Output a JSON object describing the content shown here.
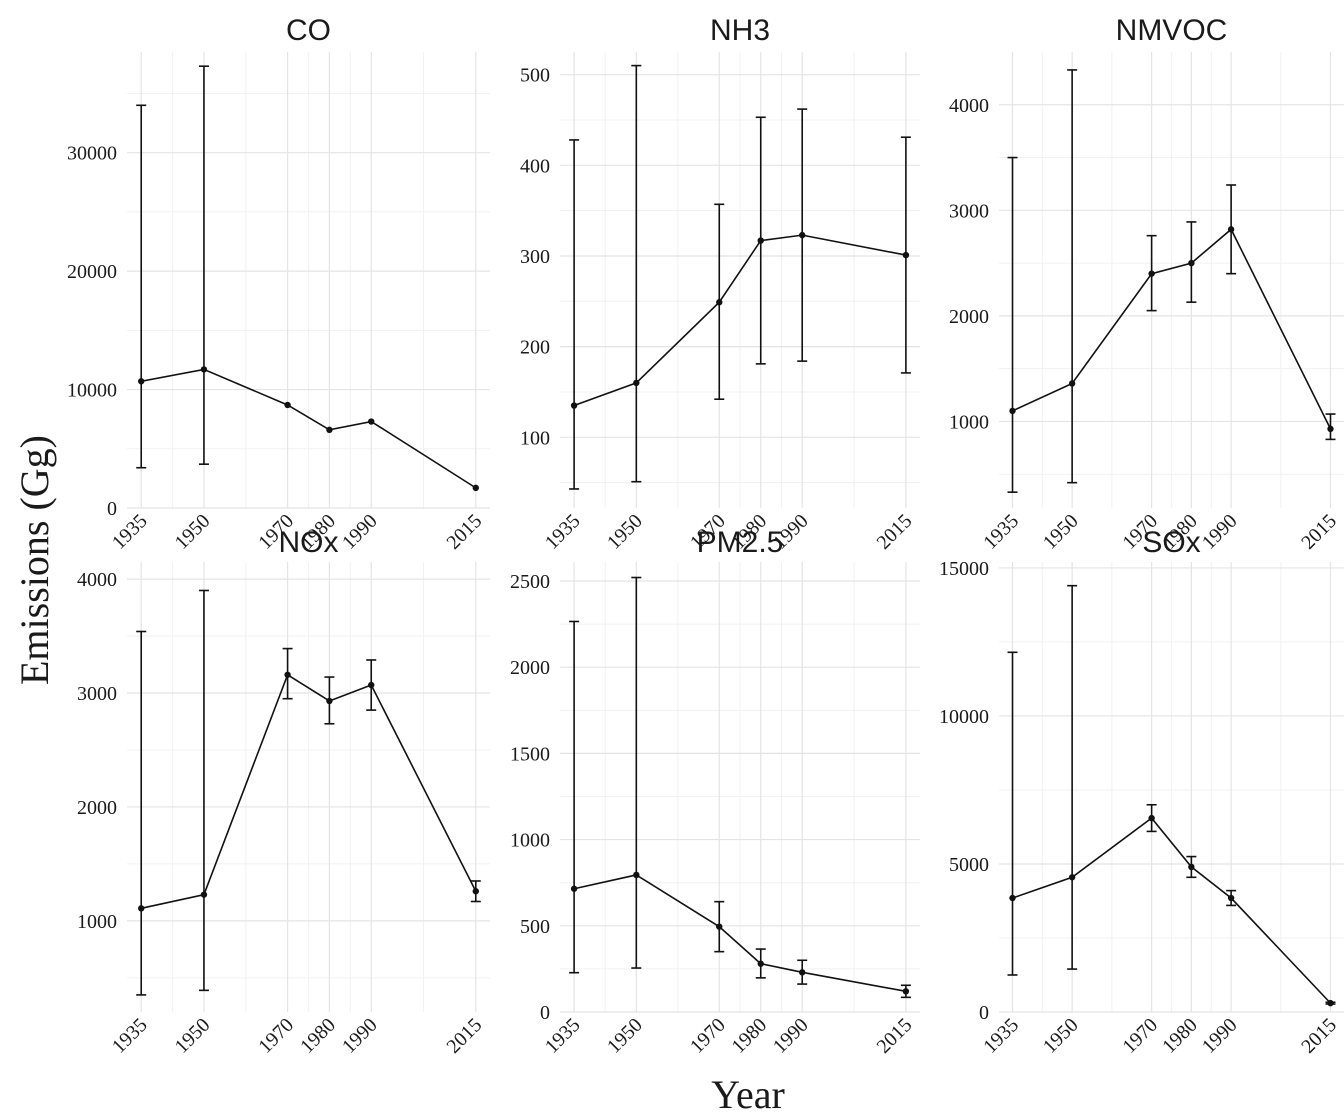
{
  "figure": {
    "xlabel": "Year",
    "ylabel": "Emissions (Gg)"
  },
  "chart_data": [
    {
      "type": "line",
      "title": "CO",
      "x": [
        1935,
        1950,
        1970,
        1980,
        1990,
        2015
      ],
      "y": [
        10700,
        11700,
        8700,
        6600,
        7300,
        1700
      ],
      "err_low": [
        3400,
        3700,
        8700,
        6600,
        7300,
        1700
      ],
      "err_high": [
        34000,
        37300,
        8700,
        6600,
        7300,
        1700
      ],
      "xticks": [
        1935,
        1950,
        1970,
        1980,
        1990,
        2015
      ],
      "yticks": [
        0,
        10000,
        20000,
        30000
      ],
      "ylim": [
        0,
        38500
      ]
    },
    {
      "type": "line",
      "title": "NH3",
      "x": [
        1935,
        1950,
        1970,
        1980,
        1990,
        2015
      ],
      "y": [
        135,
        160,
        249,
        317,
        323,
        301
      ],
      "err_low": [
        43,
        51,
        142,
        181,
        184,
        171
      ],
      "err_high": [
        428,
        510,
        357,
        453,
        462,
        431
      ],
      "xticks": [
        1935,
        1950,
        1970,
        1980,
        1990,
        2015
      ],
      "yticks": [
        100,
        200,
        300,
        400,
        500
      ],
      "ylim": [
        22,
        525
      ]
    },
    {
      "type": "line",
      "title": "NMVOC",
      "x": [
        1935,
        1950,
        1970,
        1980,
        1990,
        2015
      ],
      "y": [
        1100,
        1360,
        2400,
        2500,
        2820,
        930
      ],
      "err_low": [
        330,
        420,
        2050,
        2130,
        2400,
        830
      ],
      "err_high": [
        3500,
        4330,
        2760,
        2890,
        3240,
        1070
      ],
      "xticks": [
        1935,
        1950,
        1970,
        1980,
        1990,
        2015
      ],
      "yticks": [
        1000,
        2000,
        3000,
        4000
      ],
      "ylim": [
        180,
        4500
      ]
    },
    {
      "type": "line",
      "title": "NOx",
      "x": [
        1935,
        1950,
        1970,
        1980,
        1990,
        2015
      ],
      "y": [
        1110,
        1230,
        3160,
        2930,
        3070,
        1260
      ],
      "err_low": [
        350,
        390,
        2950,
        2730,
        2850,
        1170
      ],
      "err_high": [
        3540,
        3900,
        3390,
        3140,
        3290,
        1350
      ],
      "xticks": [
        1935,
        1950,
        1970,
        1980,
        1990,
        2015
      ],
      "yticks": [
        1000,
        2000,
        3000,
        4000
      ],
      "ylim": [
        200,
        4150
      ]
    },
    {
      "type": "line",
      "title": "PM2.5",
      "x": [
        1935,
        1950,
        1970,
        1980,
        1990,
        2015
      ],
      "y": [
        715,
        795,
        495,
        280,
        230,
        120
      ],
      "err_low": [
        228,
        255,
        350,
        198,
        162,
        85
      ],
      "err_high": [
        2265,
        2520,
        640,
        365,
        300,
        155
      ],
      "xticks": [
        1935,
        1950,
        1970,
        1980,
        1990,
        2015
      ],
      "yticks": [
        0,
        500,
        1000,
        1500,
        2000,
        2500
      ],
      "ylim": [
        0,
        2610
      ]
    },
    {
      "type": "line",
      "title": "SOx",
      "x": [
        1935,
        1950,
        1970,
        1980,
        1990,
        2015
      ],
      "y": [
        3850,
        4550,
        6550,
        4900,
        3850,
        300
      ],
      "err_low": [
        1250,
        1450,
        6100,
        4550,
        3600,
        270
      ],
      "err_high": [
        12150,
        14400,
        7000,
        5250,
        4100,
        330
      ],
      "xticks": [
        1935,
        1950,
        1970,
        1980,
        1990,
        2015
      ],
      "yticks": [
        0,
        5000,
        10000,
        15000
      ],
      "ylim": [
        0,
        15200
      ]
    }
  ]
}
